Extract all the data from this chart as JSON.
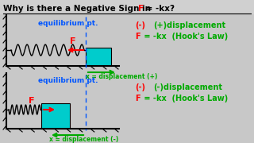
{
  "bg_color": "#c8c8c8",
  "diagram_bg": "#c8c8c8",
  "title_bg": "#d8d8d8",
  "title_text_color": "#000000",
  "title_F_color": "#ff0000",
  "eq_pt_color": "#0055ff",
  "green_color": "#00aa00",
  "red_color": "#ff0000",
  "cyan_color": "#00cccc",
  "white_color": "#ffffff",
  "black_color": "#000000",
  "title_line1": "Why is there a Negative Sign in ",
  "title_F": "F",
  "title_rest": " = -kx?",
  "top_eq_label": "equilibrium pt.",
  "top_disp_label": "x = displacement (+)",
  "top_minus": "(-)",
  "top_plus_disp": "(+)displacement",
  "top_hooke_F": "F",
  "top_hooke_rest": " = -kx  (Hook's Law)",
  "bot_eq_label": "equilibrium pt.",
  "bot_disp_label": "x = displacement (-)",
  "bot_minus": "(-)",
  "bot_minus_disp": "(-)displacement",
  "bot_hooke_F": "F",
  "bot_hooke_rest": " = -kx  (Hook's Law)"
}
